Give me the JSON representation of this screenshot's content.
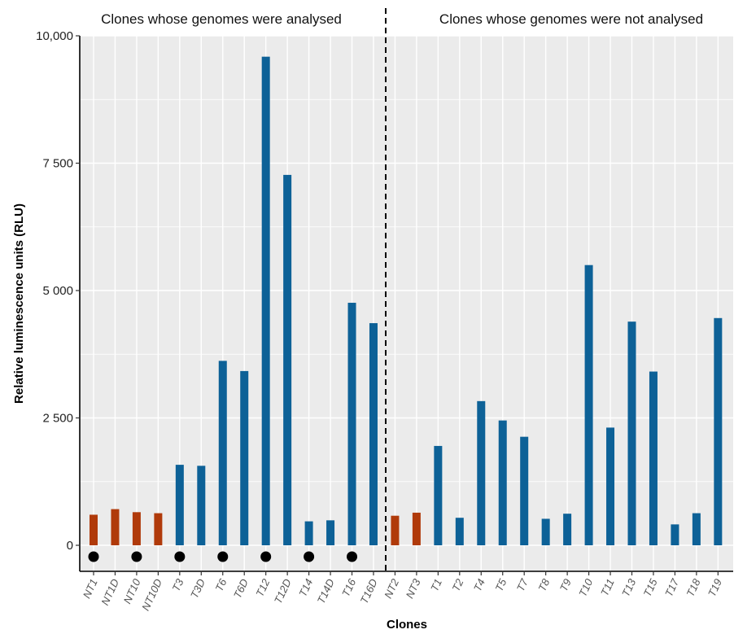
{
  "chart_data": {
    "type": "bar",
    "xlabel": "Clones",
    "ylabel": "Relative luminescence units (RLU)",
    "ylim": [
      -280,
      10000
    ],
    "yticks": [
      0,
      2500,
      5000,
      7500,
      10000
    ],
    "ytick_labels": [
      "0",
      "2 500",
      "5 000",
      "7 500",
      "10,000"
    ],
    "grid": true,
    "panel_labels": {
      "left": "Clones whose genomes were analysed",
      "right": "Clones whose genomes were not analysed"
    },
    "divider_after": "T16D",
    "categories": [
      "NT1",
      "NT1D",
      "NT10",
      "NT10D",
      "T3",
      "T3D",
      "T6",
      "T6D",
      "T12",
      "T12D",
      "T14",
      "T14D",
      "T16",
      "T16D",
      "NT2",
      "NT3",
      "T1",
      "T2",
      "T4",
      "T5",
      "T7",
      "T8",
      "T9",
      "T10",
      "T11",
      "T13",
      "T15",
      "T17",
      "T18",
      "T19"
    ],
    "values": [
      600,
      710,
      650,
      630,
      1580,
      1560,
      3620,
      3420,
      9590,
      7270,
      470,
      490,
      4760,
      4360,
      580,
      640,
      1950,
      540,
      2830,
      2450,
      2130,
      520,
      620,
      5500,
      2310,
      4390,
      3410,
      410,
      630,
      4460
    ],
    "colors": [
      "#B03A0A",
      "#B03A0A",
      "#B03A0A",
      "#B03A0A",
      "#0D6197",
      "#0D6197",
      "#0D6197",
      "#0D6197",
      "#0D6197",
      "#0D6197",
      "#0D6197",
      "#0D6197",
      "#0D6197",
      "#0D6197",
      "#B03A0A",
      "#B03A0A",
      "#0D6197",
      "#0D6197",
      "#0D6197",
      "#0D6197",
      "#0D6197",
      "#0D6197",
      "#0D6197",
      "#0D6197",
      "#0D6197",
      "#0D6197",
      "#0D6197",
      "#0D6197",
      "#0D6197",
      "#0D6197"
    ],
    "marked": [
      "NT1",
      "NT10",
      "T3",
      "T6",
      "T12",
      "T14",
      "T16"
    ],
    "panel_background": "#EBEBEB",
    "grid_color": "#FFFFFF"
  }
}
